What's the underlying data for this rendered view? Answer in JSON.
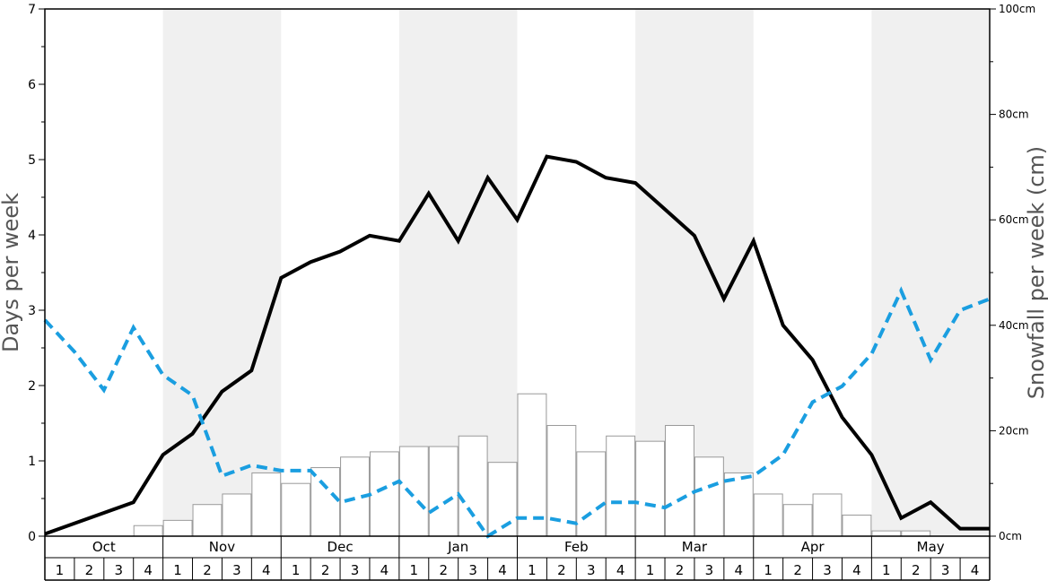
{
  "chart_data": {
    "type": "bar+line",
    "months": [
      "Oct",
      "Nov",
      "Dec",
      "Jan",
      "Feb",
      "Mar",
      "Apr",
      "May"
    ],
    "weeks": [
      "1",
      "2",
      "3",
      "4"
    ],
    "y_left": {
      "label": "Days per week",
      "range": [
        0,
        7
      ],
      "ticks": [
        "0",
        "1",
        "2",
        "3",
        "4",
        "5",
        "6",
        "7"
      ]
    },
    "y_right": {
      "label": "Snowfall per week (cm)",
      "range": [
        0,
        100
      ],
      "ticks": [
        "0cm",
        "20cm",
        "40cm",
        "60cm",
        "80cm",
        "100cm"
      ]
    },
    "shaded_months": [
      "Nov",
      "Jan",
      "Mar",
      "May"
    ],
    "colors": {
      "shade": "#f0f0f0",
      "bar_fill": "#ffffff",
      "bar_stroke": "#999999",
      "black_line": "#000000",
      "blue_line": "#1a9ee0",
      "frame": "#000000"
    },
    "bars_snowfall_cm": [
      0,
      0,
      0,
      2,
      3,
      6,
      8,
      12,
      10,
      13,
      15,
      16,
      17,
      17,
      19,
      14,
      27,
      21,
      16,
      19,
      18,
      21,
      15,
      12,
      8,
      6,
      8,
      4,
      1,
      1,
      0,
      0
    ],
    "series": [
      {
        "color": "black",
        "style": "solid",
        "axis": "left",
        "values": [
          0.03,
          0.17,
          0.31,
          0.45,
          1.08,
          1.36,
          1.92,
          2.2,
          3.43,
          3.64,
          3.78,
          3.99,
          3.92,
          4.55,
          3.92,
          4.76,
          4.2,
          5.04,
          4.97,
          4.76,
          4.69,
          4.34,
          3.99,
          3.15,
          3.92,
          2.8,
          2.34,
          1.58,
          1.08,
          0.24,
          0.45,
          0.1,
          0.1
        ]
      },
      {
        "color": "blue",
        "style": "dashed",
        "axis": "left",
        "values": [
          2.87,
          2.45,
          1.94,
          2.77,
          2.14,
          1.87,
          0.8,
          0.94,
          0.87,
          0.87,
          0.45,
          0.55,
          0.73,
          0.31,
          0.56,
          0.0,
          0.24,
          0.24,
          0.17,
          0.45,
          0.45,
          0.38,
          0.59,
          0.73,
          0.8,
          1.08,
          1.78,
          1.99,
          2.42,
          3.26,
          2.34,
          3.0,
          3.15
        ]
      }
    ]
  }
}
